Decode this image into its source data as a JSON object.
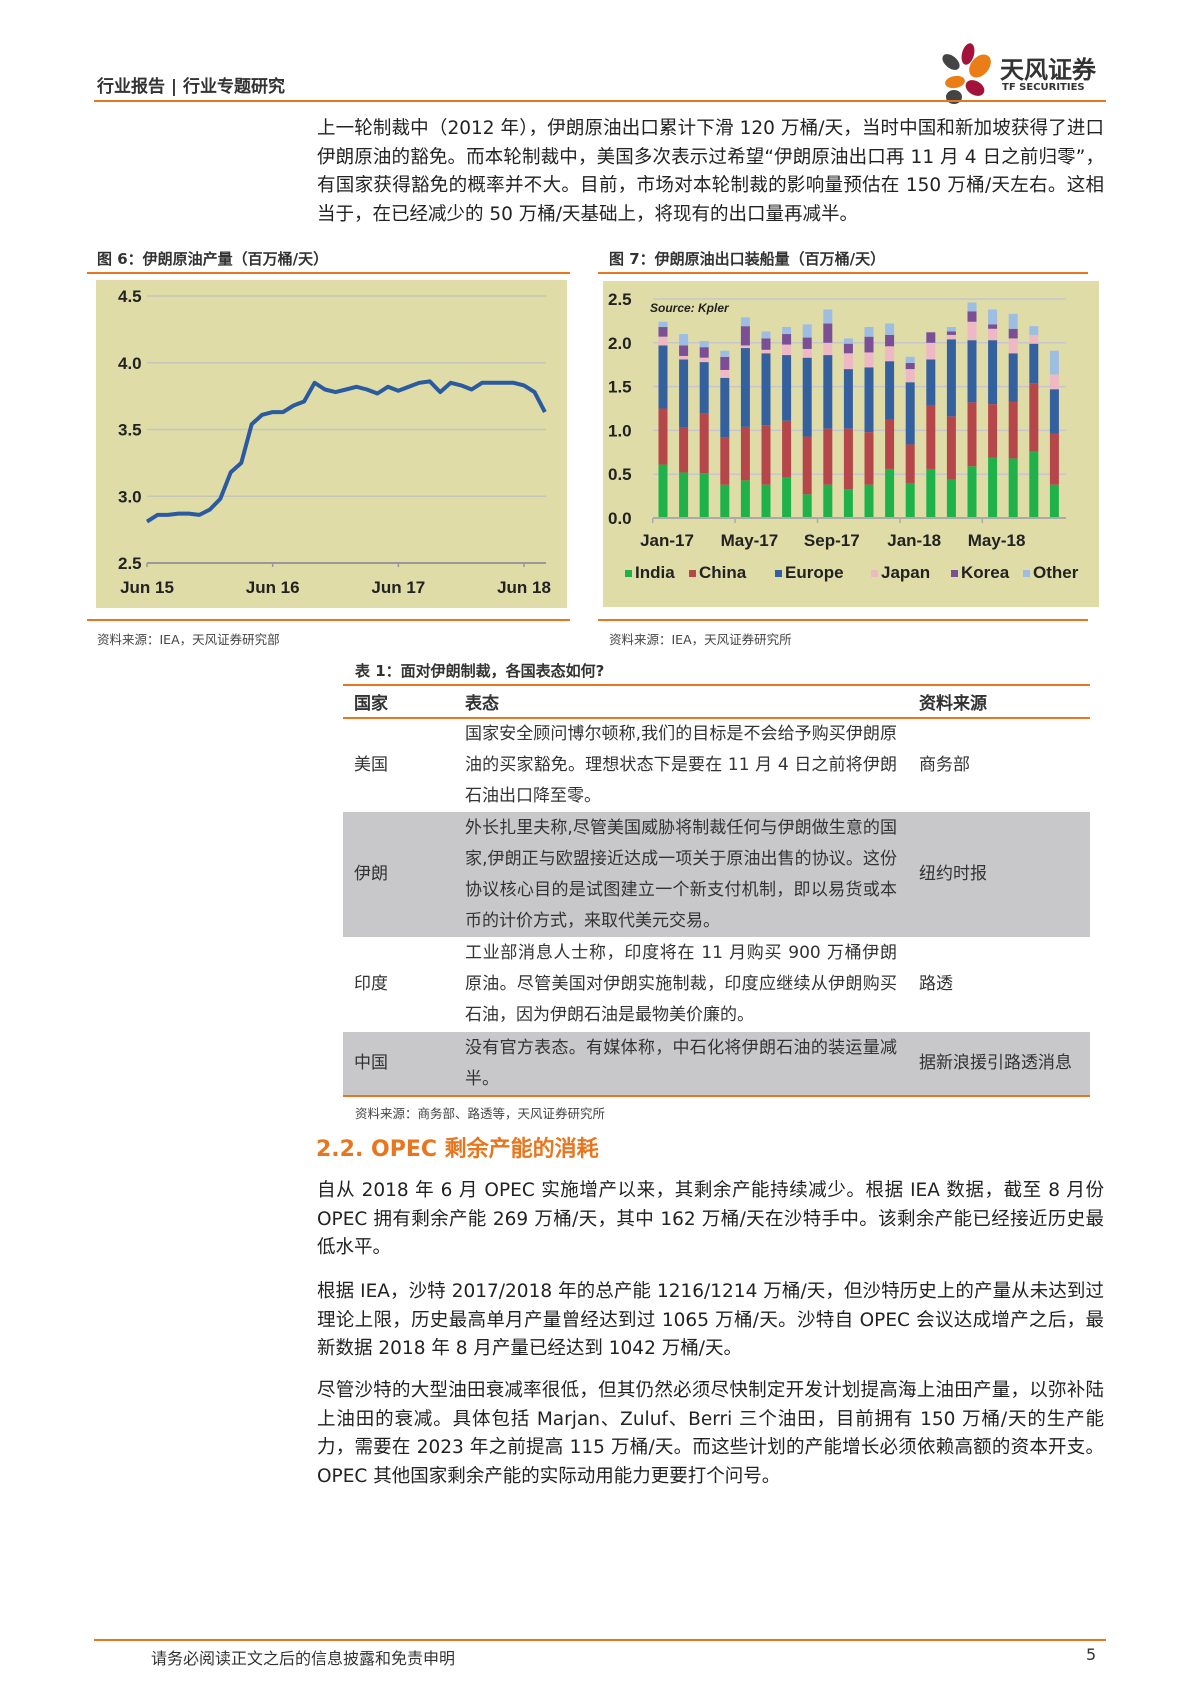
{
  "header": {
    "title": "行业报告 | 行业专题研究",
    "logo_cn": "天风证券",
    "logo_en": "TF SECURITIES"
  },
  "paragraphs": {
    "p1": "上一轮制裁中（2012 年），伊朗原油出口累计下滑 120 万桶/天，当时中国和新加坡获得了进口伊朗原油的豁免。而本轮制裁中，美国多次表示过希望“伊朗原油出口再 11 月 4 日之前归零”，有国家获得豁免的概率并不大。目前，市场对本轮制裁的影响量预估在 150 万桶/天左右。这相当于，在已经减少的 50 万桶/天基础上，将现有的出口量再减半。",
    "p2": "自从 2018 年 6 月 OPEC 实施增产以来，其剩余产能持续减少。根据 IEA 数据，截至 8 月份 OPEC 拥有剩余产能 269 万桶/天，其中 162 万桶/天在沙特手中。该剩余产能已经接近历史最低水平。",
    "p3": "根据 IEA，沙特 2017/2018 年的总产能 1216/1214 万桶/天，但沙特历史上的产量从未达到过理论上限，历史最高单月产量曾经达到过 1065 万桶/天。沙特自 OPEC 会议达成增产之后，最新数据 2018 年 8 月产量已经达到 1042 万桶/天。",
    "p4": "尽管沙特的大型油田衰减率很低，但其仍然必须尽快制定开发计划提高海上油田产量，以弥补陆上油田的衰减。具体包括 Marjan、Zuluf、Berri 三个油田，目前拥有 150 万桶/天的生产能力，需要在 2023 年之前提高 115 万桶/天。而这些计划的产能增长必须依赖高额的资本开支。OPEC 其他国家剩余产能的实际动用能力更要打个问号。"
  },
  "fig6": {
    "caption": "图 6：伊朗原油产量（百万桶/天）",
    "source": "资料来源：IEA，天风证券研究部"
  },
  "fig7": {
    "caption": "图 7：伊朗原油出口装船量（百万桶/天）",
    "source": "资料来源：IEA，天风证券研究所"
  },
  "chart_data": [
    {
      "type": "line",
      "title": "伊朗原油产量（百万桶/天）",
      "ylim": [
        2.5,
        4.5
      ],
      "yticks": [
        "4.5",
        "4.0",
        "3.5",
        "3.0",
        "2.5"
      ],
      "xticks": [
        "Jun 15",
        "Jun 16",
        "Jun 17",
        "Jun 18"
      ],
      "x_start": "Jun 15",
      "x_step": "month",
      "color": "#2a5aa0",
      "values": [
        2.81,
        2.86,
        2.86,
        2.87,
        2.87,
        2.86,
        2.9,
        2.98,
        3.18,
        3.25,
        3.54,
        3.61,
        3.63,
        3.63,
        3.68,
        3.71,
        3.85,
        3.8,
        3.78,
        3.8,
        3.82,
        3.8,
        3.77,
        3.82,
        3.79,
        3.82,
        3.85,
        3.86,
        3.78,
        3.85,
        3.83,
        3.8,
        3.85,
        3.85,
        3.85,
        3.85,
        3.83,
        3.78,
        3.63
      ]
    },
    {
      "type": "bar",
      "stacked": true,
      "annotation": "Source: Kpler",
      "ylim": [
        0,
        2.5
      ],
      "yticks": [
        "2.5",
        "2.0",
        "1.5",
        "1.0",
        "0.5",
        "0.0"
      ],
      "xticks": [
        "Jan-17",
        "May-17",
        "Sep-17",
        "Jan-18",
        "May-18"
      ],
      "categories": [
        "Jan-17",
        "Feb-17",
        "Mar-17",
        "Apr-17",
        "May-17",
        "Jun-17",
        "Jul-17",
        "Aug-17",
        "Sep-17",
        "Oct-17",
        "Nov-17",
        "Dec-17",
        "Jan-18",
        "Feb-18",
        "Mar-18",
        "Apr-18",
        "May-18",
        "Jun-18",
        "Jul-18",
        "Aug-18"
      ],
      "series": [
        {
          "name": "India",
          "color": "#1fb24a",
          "values": [
            0.61,
            0.52,
            0.51,
            0.38,
            0.43,
            0.38,
            0.46,
            0.27,
            0.38,
            0.33,
            0.38,
            0.56,
            0.4,
            0.56,
            0.44,
            0.59,
            0.69,
            0.68,
            0.76,
            0.38
          ]
        },
        {
          "name": "China",
          "color": "#b5474a",
          "values": [
            0.64,
            0.51,
            0.68,
            0.54,
            0.61,
            0.68,
            0.65,
            0.66,
            0.64,
            0.69,
            0.6,
            0.56,
            0.44,
            0.73,
            0.72,
            0.73,
            0.61,
            0.65,
            0.78,
            0.58
          ]
        },
        {
          "name": "Europe",
          "color": "#35609e",
          "values": [
            0.72,
            0.78,
            0.59,
            0.68,
            0.9,
            0.82,
            0.75,
            0.9,
            0.84,
            0.68,
            0.74,
            0.67,
            0.71,
            0.52,
            0.88,
            0.71,
            0.73,
            0.55,
            0.45,
            0.51
          ]
        },
        {
          "name": "Japan",
          "color": "#eeb9c4",
          "values": [
            0.1,
            0.04,
            0.05,
            0.09,
            0.03,
            0.04,
            0.12,
            0.1,
            0.14,
            0.18,
            0.17,
            0.17,
            0.15,
            0.19,
            0.05,
            0.21,
            0.13,
            0.17,
            0.1,
            0.17
          ]
        },
        {
          "name": "Korea",
          "color": "#7a4f96",
          "values": [
            0.11,
            0.12,
            0.12,
            0.15,
            0.22,
            0.13,
            0.12,
            0.13,
            0.22,
            0.11,
            0.18,
            0.13,
            0.07,
            0.12,
            0.04,
            0.12,
            0.05,
            0.11,
            0.0,
            0.0
          ]
        },
        {
          "name": "Other",
          "color": "#9dbde3",
          "values": [
            0.06,
            0.13,
            0.07,
            0.07,
            0.1,
            0.08,
            0.08,
            0.15,
            0.16,
            0.06,
            0.11,
            0.13,
            0.07,
            0.0,
            0.05,
            0.1,
            0.17,
            0.17,
            0.1,
            0.27
          ]
        }
      ]
    }
  ],
  "table": {
    "caption": "表 1：面对伊朗制裁，各国表态如何?",
    "headers": [
      "国家",
      "表态",
      "资料来源"
    ],
    "rows": [
      {
        "country": "美国",
        "statement": "国家安全顾问博尔顿称,我们的目标是不会给予购买伊朗原油的买家豁免。理想状态下是要在 11 月 4 日之前将伊朗石油出口降至零。",
        "source": "商务部"
      },
      {
        "country": "伊朗",
        "statement": "外长扎里夫称,尽管美国威胁将制裁任何与伊朗做生意的国家,伊朗正与欧盟接近达成一项关于原油出售的协议。这份协议核心目的是试图建立一个新支付机制，即以易货或本币的计价方式，来取代美元交易。",
        "source": "纽约时报"
      },
      {
        "country": "印度",
        "statement": "工业部消息人士称，印度将在 11 月购买 900 万桶伊朗原油。尽管美国对伊朗实施制裁，印度应继续从伊朗购买石油，因为伊朗石油是最物美价廉的。",
        "source": "路透"
      },
      {
        "country": "中国",
        "statement": "没有官方表态。有媒体称，中石化将伊朗石油的装运量减半。",
        "source": "据新浪援引路透消息"
      }
    ],
    "source": "资料来源：商务部、路透等，天风证券研究所"
  },
  "section": {
    "title": "2.2. OPEC 剩余产能的消耗"
  },
  "footer": {
    "disclaimer": "请务必阅读正文之后的信息披露和免责申明",
    "page": "5"
  }
}
